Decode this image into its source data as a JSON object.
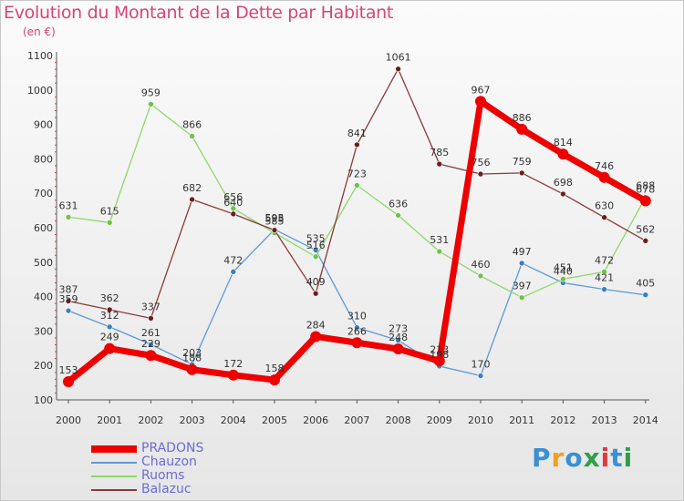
{
  "title": "Evolution du Montant de la Dette par Habitant",
  "subtitle": "(en €)",
  "logo": {
    "text": "Proxiti",
    "colors": [
      "#3b8fd4",
      "#f0a020",
      "#3b8fd4",
      "#2e9e48",
      "#e03a3a",
      "#3b8fd4",
      "#2e9e48"
    ]
  },
  "chart_data": {
    "type": "line",
    "title": "Evolution du Montant de la Dette par Habitant",
    "ylabel": "(en €)",
    "xlabel": "",
    "categories": [
      "2000",
      "2001",
      "2002",
      "2003",
      "2004",
      "2005",
      "2006",
      "2007",
      "2008",
      "2009",
      "2010",
      "2011",
      "2012",
      "2013",
      "2014"
    ],
    "ylim": [
      100,
      1100
    ],
    "yticks": [
      "100",
      "200",
      "300",
      "400",
      "500",
      "600",
      "700",
      "800",
      "900",
      "1000",
      "1100"
    ],
    "series": [
      {
        "name": "Chauzon",
        "color": "#5b9bd5",
        "point": "#3a7fc0",
        "values": [
          359,
          312,
          261,
          203,
          472,
          595,
          535,
          310,
          273,
          198,
          170,
          497,
          440,
          421,
          405
        ],
        "labels": [
          "359",
          "312",
          "261",
          "203",
          "472",
          "595",
          "535",
          "310",
          "273",
          "198",
          "170",
          "497",
          "440",
          "421",
          "405"
        ]
      },
      {
        "name": "Ruoms",
        "color": "#8fd86a",
        "point": "#6fc24a",
        "values": [
          631,
          615,
          959,
          866,
          656,
          585,
          516,
          723,
          636,
          531,
          460,
          397,
          451,
          472,
          688
        ],
        "labels": [
          "631",
          "615",
          "959",
          "866",
          "656",
          "585",
          "516",
          "723",
          "636",
          "531",
          "460",
          "397",
          "451",
          "472",
          "688"
        ]
      },
      {
        "name": "Balazuc",
        "color": "#8a3a3a",
        "point": "#6a1e1e",
        "values": [
          387,
          362,
          337,
          682,
          640,
          593,
          409,
          841,
          1061,
          785,
          756,
          759,
          698,
          630,
          562
        ],
        "labels": [
          "387",
          "362",
          "337",
          "682",
          "640",
          "593",
          "409",
          "841",
          "1061",
          "785",
          "756",
          "759",
          "698",
          "630",
          "562"
        ]
      },
      {
        "name": "PRADONS",
        "color": "#ee0000",
        "point": "#ee0000",
        "values": [
          153,
          249,
          229,
          188,
          172,
          158,
          284,
          266,
          248,
          213,
          967,
          886,
          814,
          746,
          678
        ],
        "labels": [
          "153",
          "249",
          "229",
          "188",
          "172",
          "158",
          "284",
          "266",
          "248",
          "213",
          "967",
          "886",
          "814",
          "746",
          "678"
        ]
      }
    ],
    "legend_order": [
      "PRADONS",
      "Chauzon",
      "Ruoms",
      "Balazuc"
    ],
    "legend": "bottom-left",
    "grid": false
  }
}
